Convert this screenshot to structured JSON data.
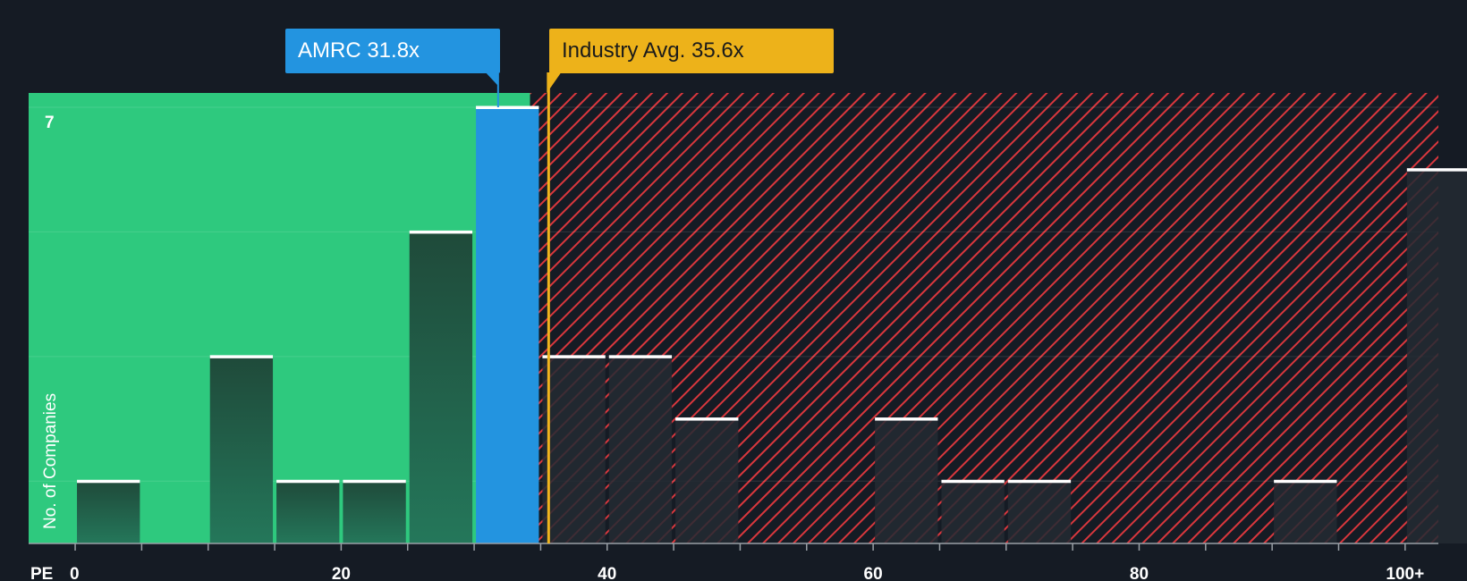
{
  "colors": {
    "background": "#151b24",
    "fair_zone": "#2ec97e",
    "over_zone_stripe": "#d9373d",
    "company_bar": "#2394e0",
    "industry_line": "#f0b41d",
    "industry_label_bg": "#edb21a",
    "company_label_bg": "#2394e0",
    "bar_green_top": "#1f4a3a",
    "bar_green_bottom": "#24775a",
    "bar_dark": "#232a33",
    "bar_cap": "#ffffff"
  },
  "company_label": {
    "text": "AMRC 31.8x"
  },
  "industry_label": {
    "text": "Industry Avg. 35.6x"
  },
  "chart_data": {
    "type": "bar",
    "title": "",
    "xlabel": "PE",
    "ylabel": "No. of Companies",
    "bin_width": 5,
    "bin_starts": [
      0,
      5,
      10,
      15,
      20,
      25,
      30,
      35,
      40,
      45,
      50,
      55,
      60,
      65,
      70,
      75,
      80,
      85,
      90,
      95,
      100
    ],
    "values": [
      1,
      0,
      3,
      1,
      1,
      5,
      7,
      3,
      3,
      2,
      0,
      0,
      2,
      1,
      1,
      0,
      0,
      0,
      1,
      0,
      6
    ],
    "company": {
      "name": "AMRC",
      "pe": 31.8
    },
    "industry_avg": 35.6,
    "fair_zone_end": 34.2,
    "x_ticks": [
      {
        "value": 0,
        "label": "0"
      },
      {
        "value": 20,
        "label": "20"
      },
      {
        "value": 40,
        "label": "40"
      },
      {
        "value": 60,
        "label": "60"
      },
      {
        "value": 80,
        "label": "80"
      },
      {
        "value": 100,
        "label": "100+"
      }
    ],
    "x_minor_ticks": [
      5,
      10,
      15,
      25,
      30,
      35,
      45,
      50,
      55,
      65,
      70,
      75,
      85,
      90,
      95
    ],
    "y_ticks": [
      {
        "value": 7,
        "label": "7"
      }
    ],
    "y_gridlines": [
      1,
      3,
      5,
      7
    ],
    "xlim": [
      -3.5,
      102.5
    ],
    "ylim": [
      0,
      7
    ]
  }
}
